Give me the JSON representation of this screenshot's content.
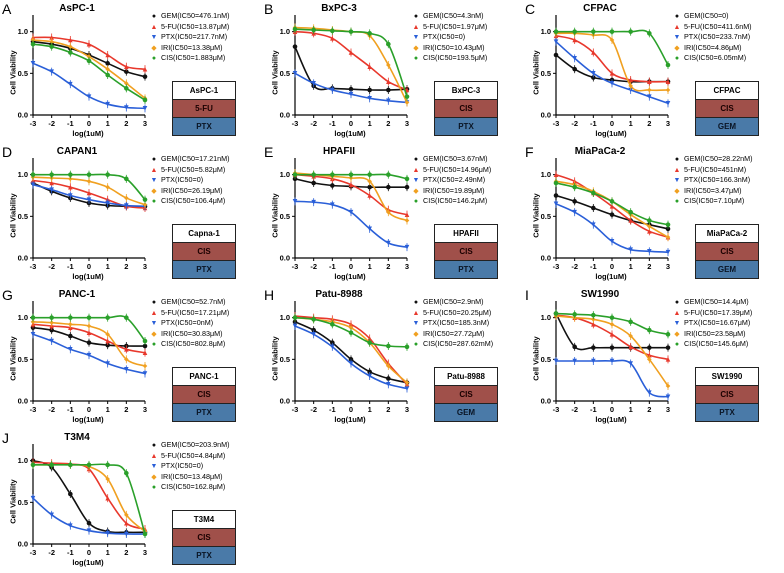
{
  "chart_data": [
    {
      "type": "line",
      "letter": "A",
      "title": "AsPC-1",
      "xlabel": "log(1uM)",
      "ylabel": "Cell Viability",
      "x_ticks": [
        "-3",
        "-2",
        "-1",
        "0",
        "1",
        "2",
        "3"
      ],
      "y_ticks": [
        "0.0",
        "0.5",
        "1.0"
      ],
      "xlim": [
        -3,
        3
      ],
      "ylim": [
        0,
        1.2
      ],
      "series": [
        {
          "name": "GEM(IC50=476.1nM)",
          "values": [
            0.88,
            0.85,
            0.8,
            0.72,
            0.62,
            0.52,
            0.46
          ]
        },
        {
          "name": "5-FU(IC50=13.87μM)",
          "values": [
            0.93,
            0.93,
            0.9,
            0.85,
            0.72,
            0.58,
            0.55
          ]
        },
        {
          "name": "PTX(IC50=217.7nM)",
          "values": [
            0.62,
            0.52,
            0.37,
            0.22,
            0.13,
            0.09,
            0.08
          ]
        },
        {
          "name": "IRI(IC50=13.38μM)",
          "values": [
            0.9,
            0.88,
            0.82,
            0.7,
            0.55,
            0.38,
            0.2
          ]
        },
        {
          "name": "CIS(IC50=1.883μM)",
          "values": [
            0.85,
            0.82,
            0.75,
            0.65,
            0.48,
            0.32,
            0.18
          ]
        }
      ],
      "cell_line_box": {
        "name": "AsPC-1",
        "drug1": "5-FU",
        "drug2": "PTX"
      }
    },
    {
      "type": "line",
      "letter": "B",
      "title": "BxPC-3",
      "xlabel": "log(1uM)",
      "ylabel": "Cell Viability",
      "x_ticks": [
        "-3",
        "-2",
        "-1",
        "0",
        "1",
        "2",
        "3"
      ],
      "y_ticks": [
        "0.0",
        "0.5",
        "1.0"
      ],
      "xlim": [
        -3,
        3
      ],
      "ylim": [
        0,
        1.2
      ],
      "series": [
        {
          "name": "GEM(IC50=4.3nM)",
          "values": [
            0.82,
            0.35,
            0.32,
            0.31,
            0.3,
            0.3,
            0.31
          ]
        },
        {
          "name": "5-FU(IC50=1.97μM)",
          "values": [
            1.0,
            0.98,
            0.92,
            0.75,
            0.58,
            0.4,
            0.3
          ]
        },
        {
          "name": "PTX(IC50=0)",
          "values": [
            0.5,
            0.38,
            0.3,
            0.25,
            0.2,
            0.17,
            0.15
          ]
        },
        {
          "name": "IRI(IC50=10.43μM)",
          "values": [
            1.05,
            1.04,
            1.02,
            1.0,
            0.95,
            0.6,
            0.15
          ]
        },
        {
          "name": "CIS(IC50=193.5μM)",
          "values": [
            1.03,
            1.02,
            1.01,
            1.0,
            0.98,
            0.85,
            0.22
          ]
        }
      ],
      "cell_line_box": {
        "name": "BxPC-3",
        "drug1": "CIS",
        "drug2": "PTX"
      }
    },
    {
      "type": "line",
      "letter": "C",
      "title": "CFPAC",
      "xlabel": "log(1uM)",
      "ylabel": "Cell Viability",
      "x_ticks": [
        "-3",
        "-2",
        "-1",
        "0",
        "1",
        "2",
        "3"
      ],
      "y_ticks": [
        "0.0",
        "0.5",
        "1.0"
      ],
      "xlim": [
        -3,
        3
      ],
      "ylim": [
        0,
        1.2
      ],
      "series": [
        {
          "name": "GEM(IC50=0)",
          "values": [
            0.72,
            0.55,
            0.45,
            0.42,
            0.4,
            0.4,
            0.4
          ]
        },
        {
          "name": "5-FU(IC50=411.6nM)",
          "values": [
            0.95,
            0.9,
            0.75,
            0.5,
            0.42,
            0.4,
            0.4
          ]
        },
        {
          "name": "PTX(IC50=233.7nM)",
          "values": [
            0.88,
            0.68,
            0.5,
            0.38,
            0.3,
            0.22,
            0.14
          ]
        },
        {
          "name": "IRI(IC50=4.86μM)",
          "values": [
            0.98,
            0.98,
            0.96,
            0.9,
            0.35,
            0.3,
            0.3
          ]
        },
        {
          "name": "CIS(IC50=6.05mM)",
          "values": [
            1.0,
            1.0,
            1.0,
            1.0,
            1.0,
            0.98,
            0.6
          ]
        }
      ],
      "cell_line_box": {
        "name": "CFPAC",
        "drug1": "CIS",
        "drug2": "GEM"
      }
    },
    {
      "type": "line",
      "letter": "D",
      "title": "CAPAN1",
      "xlabel": "log(1uM)",
      "ylabel": "Cell Viability",
      "x_ticks": [
        "-3",
        "-2",
        "-1",
        "0",
        "1",
        "2",
        "3"
      ],
      "y_ticks": [
        "0.0",
        "0.5",
        "1.0"
      ],
      "xlim": [
        -3,
        3
      ],
      "ylim": [
        0,
        1.2
      ],
      "series": [
        {
          "name": "GEM(IC50=17.21nM)",
          "values": [
            0.9,
            0.8,
            0.72,
            0.66,
            0.63,
            0.62,
            0.62
          ]
        },
        {
          "name": "5-FU(IC50=5.82μM)",
          "values": [
            0.93,
            0.9,
            0.85,
            0.78,
            0.7,
            0.62,
            0.6
          ]
        },
        {
          "name": "PTX(IC50=0)",
          "values": [
            0.88,
            0.82,
            0.75,
            0.7,
            0.66,
            0.63,
            0.62
          ]
        },
        {
          "name": "IRI(IC50=26.19μM)",
          "values": [
            0.97,
            0.96,
            0.95,
            0.92,
            0.85,
            0.72,
            0.64
          ]
        },
        {
          "name": "CIS(IC50=106.4μM)",
          "values": [
            1.0,
            1.0,
            1.0,
            1.0,
            1.0,
            0.95,
            0.7
          ]
        }
      ],
      "cell_line_box": {
        "name": "Capna-1",
        "drug1": "CIS",
        "drug2": "PTX"
      }
    },
    {
      "type": "line",
      "letter": "E",
      "title": "HPAFII",
      "xlabel": "log(1uM)",
      "ylabel": "Cell Viability",
      "x_ticks": [
        "-3",
        "-2",
        "-1",
        "0",
        "1",
        "2",
        "3"
      ],
      "y_ticks": [
        "0.0",
        "0.5",
        "1.0"
      ],
      "xlim": [
        -3,
        3
      ],
      "ylim": [
        0,
        1.2
      ],
      "series": [
        {
          "name": "GEM(IC50=3.67nM)",
          "values": [
            0.95,
            0.9,
            0.87,
            0.86,
            0.85,
            0.85,
            0.85
          ]
        },
        {
          "name": "5-FU(IC50=14.96μM)",
          "values": [
            1.0,
            0.98,
            0.95,
            0.88,
            0.75,
            0.58,
            0.52
          ]
        },
        {
          "name": "PTX(IC50=2.49nM)",
          "values": [
            0.68,
            0.67,
            0.64,
            0.55,
            0.35,
            0.18,
            0.13
          ]
        },
        {
          "name": "IRI(IC50=19.89μM)",
          "values": [
            1.02,
            1.0,
            0.98,
            0.96,
            0.92,
            0.55,
            0.45
          ]
        },
        {
          "name": "CIS(IC50=146.2μM)",
          "values": [
            1.0,
            1.0,
            1.0,
            1.0,
            1.0,
            1.0,
            0.95
          ]
        }
      ],
      "cell_line_box": {
        "name": "HPAFII",
        "drug1": "CIS",
        "drug2": "PTX"
      }
    },
    {
      "type": "line",
      "letter": "F",
      "title": "MiaPaCa-2",
      "xlabel": "log(1uM)",
      "ylabel": "Cell Viability",
      "x_ticks": [
        "-3",
        "-2",
        "-1",
        "0",
        "1",
        "2",
        "3"
      ],
      "y_ticks": [
        "0.0",
        "0.5",
        "1.0"
      ],
      "xlim": [
        -3,
        3
      ],
      "ylim": [
        0,
        1.2
      ],
      "series": [
        {
          "name": "GEM(IC50=28.22nM)",
          "values": [
            0.75,
            0.68,
            0.6,
            0.52,
            0.45,
            0.4,
            0.35
          ]
        },
        {
          "name": "5-FU(IC50=451nM)",
          "values": [
            1.0,
            0.92,
            0.78,
            0.62,
            0.45,
            0.32,
            0.25
          ]
        },
        {
          "name": "PTX(IC50=166.3nM)",
          "values": [
            0.65,
            0.55,
            0.4,
            0.2,
            0.1,
            0.08,
            0.07
          ]
        },
        {
          "name": "IRI(IC50=3.47μM)",
          "values": [
            0.92,
            0.88,
            0.8,
            0.68,
            0.52,
            0.38,
            0.25
          ]
        },
        {
          "name": "CIS(IC50=7.10μM)",
          "values": [
            0.9,
            0.85,
            0.78,
            0.68,
            0.55,
            0.45,
            0.4
          ]
        }
      ],
      "cell_line_box": {
        "name": "MiaPaCa-2",
        "drug1": "CIS",
        "drug2": "GEM"
      }
    },
    {
      "type": "line",
      "letter": "G",
      "title": "PANC-1",
      "xlabel": "log(1uM)",
      "ylabel": "Cell Viability",
      "x_ticks": [
        "-3",
        "-2",
        "-1",
        "0",
        "1",
        "2",
        "3"
      ],
      "y_ticks": [
        "0.0",
        "0.5",
        "1.0"
      ],
      "xlim": [
        -3,
        3
      ],
      "ylim": [
        0,
        1.2
      ],
      "series": [
        {
          "name": "GEM(IC50=52.7nM)",
          "values": [
            0.88,
            0.85,
            0.78,
            0.7,
            0.67,
            0.66,
            0.66
          ]
        },
        {
          "name": "5-FU(IC50=17.21μM)",
          "values": [
            0.92,
            0.9,
            0.88,
            0.82,
            0.72,
            0.62,
            0.58
          ]
        },
        {
          "name": "PTX(IC50=0nM)",
          "values": [
            0.8,
            0.72,
            0.62,
            0.55,
            0.45,
            0.38,
            0.33
          ]
        },
        {
          "name": "IRI(IC50=30.83μM)",
          "values": [
            0.95,
            0.94,
            0.92,
            0.9,
            0.8,
            0.5,
            0.42
          ]
        },
        {
          "name": "CIS(IC50=802.8μM)",
          "values": [
            1.0,
            1.0,
            1.0,
            1.0,
            1.0,
            1.0,
            0.72
          ]
        }
      ],
      "cell_line_box": {
        "name": "PANC-1",
        "drug1": "CIS",
        "drug2": "PTX"
      }
    },
    {
      "type": "line",
      "letter": "H",
      "title": "Patu-8988",
      "xlabel": "log(1uM)",
      "ylabel": "Cell Viability",
      "x_ticks": [
        "-3",
        "-2",
        "-1",
        "0",
        "1",
        "2",
        "3"
      ],
      "y_ticks": [
        "0.0",
        "0.5",
        "1.0"
      ],
      "xlim": [
        -3,
        3
      ],
      "ylim": [
        0,
        1.2
      ],
      "series": [
        {
          "name": "GEM(IC50=2.9nM)",
          "values": [
            0.95,
            0.85,
            0.7,
            0.5,
            0.35,
            0.27,
            0.22
          ]
        },
        {
          "name": "5-FU(IC50=20.25μM)",
          "values": [
            1.02,
            1.0,
            0.98,
            0.92,
            0.75,
            0.45,
            0.2
          ]
        },
        {
          "name": "PTX(IC50=185.3nM)",
          "values": [
            0.9,
            0.8,
            0.65,
            0.45,
            0.3,
            0.2,
            0.15
          ]
        },
        {
          "name": "IRI(IC50=27.72μM)",
          "values": [
            1.0,
            0.98,
            0.95,
            0.88,
            0.7,
            0.42,
            0.22
          ]
        },
        {
          "name": "CIS(IC50=287.62mM)",
          "values": [
            1.0,
            0.98,
            0.92,
            0.82,
            0.7,
            0.66,
            0.65
          ]
        }
      ],
      "cell_line_box": {
        "name": "Patu-8988",
        "drug1": "CIS",
        "drug2": "GEM"
      }
    },
    {
      "type": "line",
      "letter": "I",
      "title": "SW1990",
      "xlabel": "log(1uM)",
      "ylabel": "Cell Viability",
      "x_ticks": [
        "-3",
        "-2",
        "-1",
        "0",
        "1",
        "2",
        "3"
      ],
      "y_ticks": [
        "0.0",
        "0.5",
        "1.0"
      ],
      "xlim": [
        -3,
        3
      ],
      "ylim": [
        0,
        1.2
      ],
      "series": [
        {
          "name": "GEM(IC50=14.4μM)",
          "values": [
            1.05,
            0.65,
            0.64,
            0.64,
            0.64,
            0.64,
            0.64
          ]
        },
        {
          "name": "5-FU(IC50=17.39μM)",
          "values": [
            1.03,
            1.0,
            0.92,
            0.8,
            0.65,
            0.55,
            0.5
          ]
        },
        {
          "name": "PTX(IC50=16.67μM)",
          "values": [
            0.48,
            0.48,
            0.48,
            0.48,
            0.45,
            0.1,
            0.05
          ]
        },
        {
          "name": "IRI(IC50=23.58μM)",
          "values": [
            1.02,
            1.0,
            0.98,
            0.92,
            0.78,
            0.5,
            0.18
          ]
        },
        {
          "name": "CIS(IC50=145.6μM)",
          "values": [
            1.05,
            1.04,
            1.03,
            1.0,
            0.95,
            0.85,
            0.8
          ]
        }
      ],
      "cell_line_box": {
        "name": "SW1990",
        "drug1": "CIS",
        "drug2": "PTX"
      }
    },
    {
      "type": "line",
      "letter": "J",
      "title": "T3M4",
      "xlabel": "log(1uM)",
      "ylabel": "Cell Viability",
      "x_ticks": [
        "-3",
        "-2",
        "-1",
        "0",
        "1",
        "2",
        "3"
      ],
      "y_ticks": [
        "0.0",
        "0.5",
        "1.0"
      ],
      "xlim": [
        -3,
        3
      ],
      "ylim": [
        0,
        1.2
      ],
      "series": [
        {
          "name": "GEM(IC50=203.9nM)",
          "values": [
            1.0,
            0.92,
            0.6,
            0.25,
            0.15,
            0.14,
            0.14
          ]
        },
        {
          "name": "5-FU(IC50=4.84μM)",
          "values": [
            0.98,
            0.97,
            0.96,
            0.9,
            0.55,
            0.25,
            0.18
          ]
        },
        {
          "name": "PTX(IC50=0)",
          "values": [
            0.55,
            0.35,
            0.22,
            0.16,
            0.13,
            0.12,
            0.12
          ]
        },
        {
          "name": "IRI(IC50=13.48μM)",
          "values": [
            0.95,
            0.95,
            0.95,
            0.93,
            0.78,
            0.35,
            0.15
          ]
        },
        {
          "name": "CIS(IC50=162.8μM)",
          "values": [
            0.95,
            0.95,
            0.95,
            0.95,
            0.95,
            0.85,
            0.12
          ]
        }
      ],
      "cell_line_box": {
        "name": "T3M4",
        "drug1": "CIS",
        "drug2": "PTX"
      }
    }
  ],
  "series_colors": [
    "#111111",
    "#e8382c",
    "#2a5fd8",
    "#f0a020",
    "#2aa02a"
  ],
  "series_markers": [
    "●",
    "▲",
    "▼",
    "◆",
    "●"
  ],
  "drug_box_colors": {
    "drug1": "#a0504a",
    "drug2": "#4a7aa8"
  }
}
